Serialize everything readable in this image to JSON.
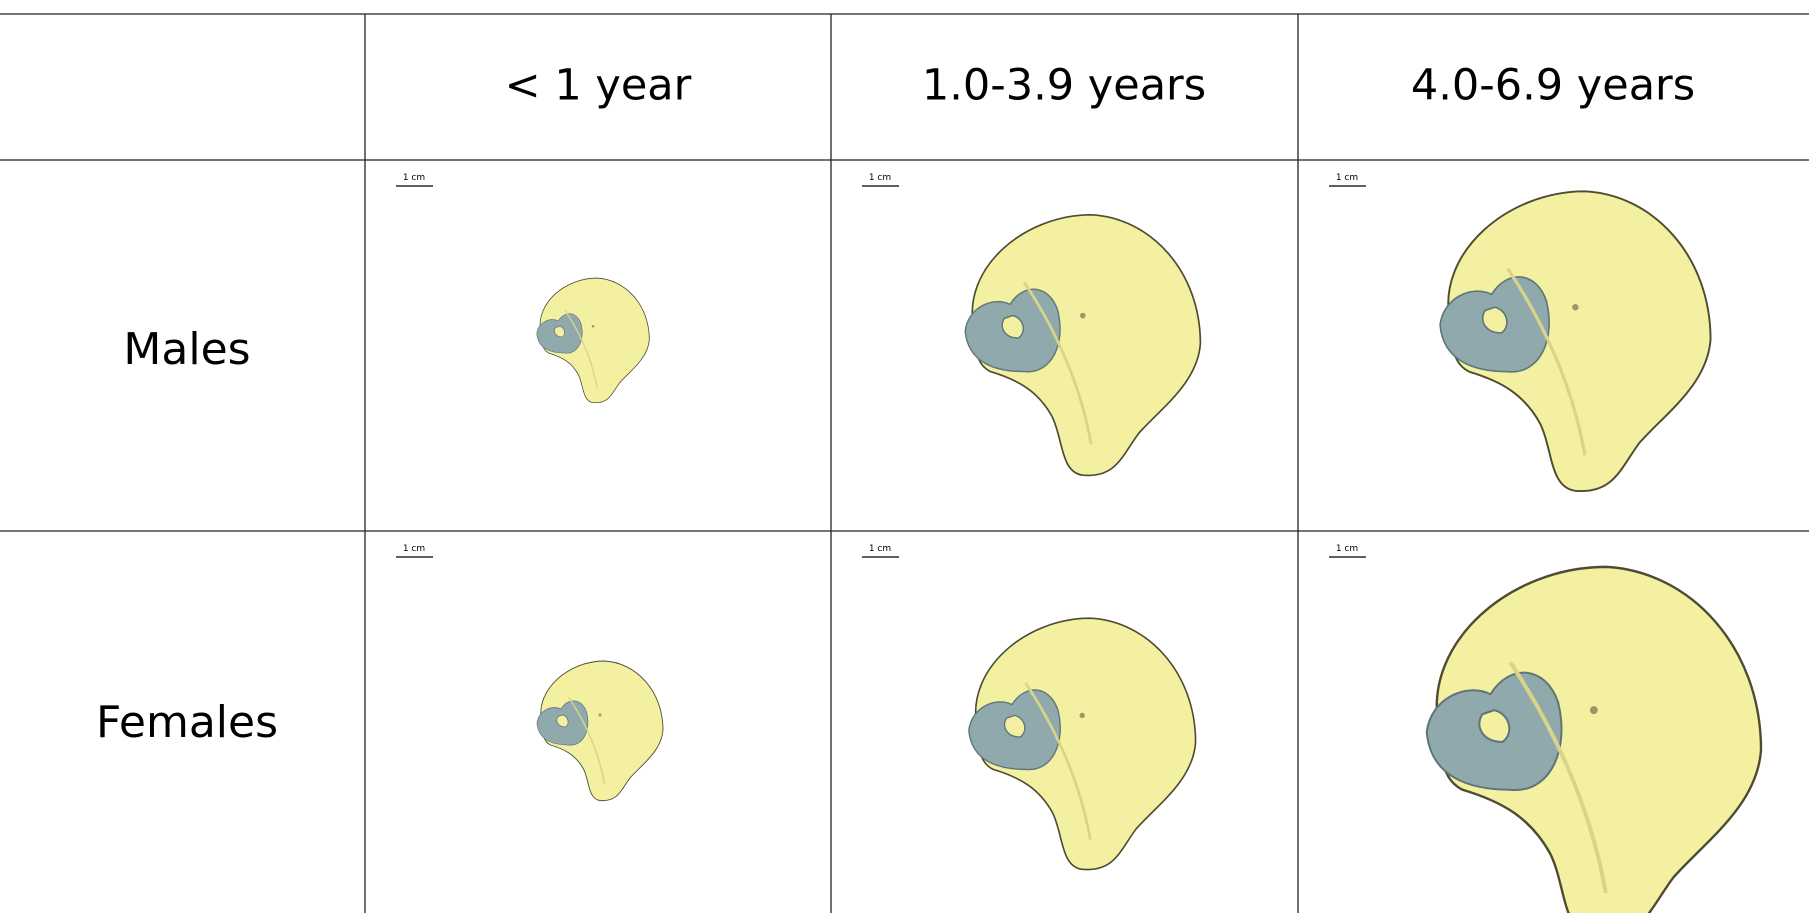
{
  "header": {
    "columns": [
      "< 1 year",
      "1.0-3.9 years",
      "4.0-6.9 years"
    ]
  },
  "rows": [
    {
      "label": "Males",
      "scale_labels": [
        "1 cm",
        "1 cm",
        "1 cm"
      ]
    },
    {
      "label": "Females",
      "scale_labels": [
        "1 cm",
        "1 cm",
        "1 cm"
      ]
    }
  ]
}
